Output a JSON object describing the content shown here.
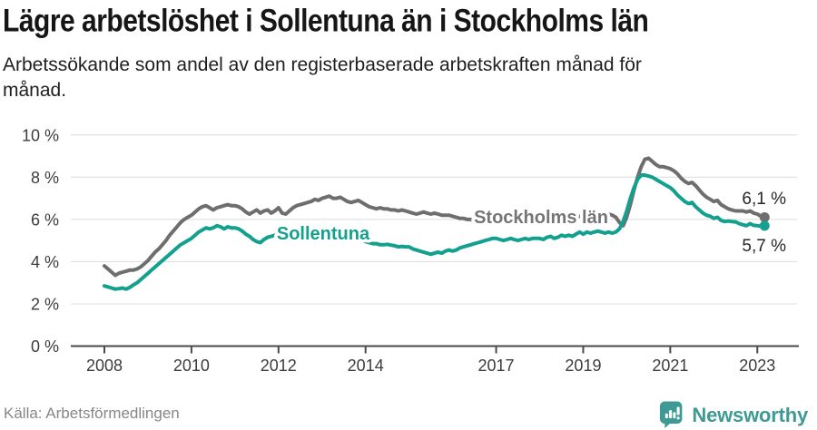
{
  "header": {
    "title": "Lägre arbetslöshet i Sollentuna än i Stockholms län",
    "subtitle": "Arbetssökande som andel av den registerbaserade arbetskraften månad för\nmånad."
  },
  "footer": {
    "source": "Källa: Arbetsförmedlingen",
    "brand_name": "Newsworthy",
    "brand_color": "#3d9a94"
  },
  "chart_data": {
    "type": "line",
    "title": "Lägre arbetslöshet i Sollentuna än i Stockholms län",
    "subtitle": "Arbetssökande som andel av den registerbaserade arbetskraften månad för månad.",
    "source": "Källa: Arbetsförmedlingen",
    "frequency": "monthly",
    "x_start": "2008-01",
    "x_end": "2023-03",
    "x_ticks": [
      2008,
      2010,
      2012,
      2014,
      2017,
      2019,
      2021,
      2023
    ],
    "y_ticks": [
      0,
      2,
      4,
      6,
      8,
      10
    ],
    "y_tick_suffix": " %",
    "ylim": [
      0,
      10
    ],
    "grid": true,
    "axis_text_color": "#3c3c3c",
    "grid_color": "#dcdcdd",
    "axis_color": "#4a4a4a",
    "end_label_color": "#262626",
    "series": [
      {
        "name": "Stockholms län",
        "color": "#6e6e6e",
        "label_color": "#757575",
        "end_label": "6,1 %",
        "end_value": 6.1,
        "values": [
          3.8,
          3.65,
          3.5,
          3.35,
          3.45,
          3.5,
          3.55,
          3.6,
          3.6,
          3.65,
          3.75,
          3.9,
          4.05,
          4.25,
          4.45,
          4.6,
          4.8,
          5.0,
          5.25,
          5.45,
          5.65,
          5.85,
          6.0,
          6.1,
          6.2,
          6.35,
          6.5,
          6.6,
          6.65,
          6.55,
          6.45,
          6.55,
          6.6,
          6.65,
          6.7,
          6.65,
          6.65,
          6.6,
          6.5,
          6.35,
          6.25,
          6.35,
          6.45,
          6.3,
          6.4,
          6.45,
          6.3,
          6.4,
          6.55,
          6.3,
          6.25,
          6.4,
          6.55,
          6.65,
          6.7,
          6.75,
          6.8,
          6.85,
          6.95,
          6.9,
          7.0,
          7.05,
          7.1,
          7.0,
          7.0,
          7.05,
          6.95,
          6.85,
          6.8,
          6.85,
          6.9,
          6.8,
          6.7,
          6.6,
          6.55,
          6.5,
          6.55,
          6.5,
          6.5,
          6.45,
          6.45,
          6.4,
          6.45,
          6.4,
          6.35,
          6.3,
          6.25,
          6.3,
          6.35,
          6.3,
          6.25,
          6.3,
          6.25,
          6.2,
          6.2,
          6.2,
          6.15,
          6.1,
          6.05,
          6.05,
          6.0,
          6.0,
          5.95,
          5.95,
          5.9,
          5.9,
          5.95,
          5.95,
          5.95,
          5.9,
          5.9,
          5.9,
          5.95,
          5.95,
          6.0,
          6.0,
          6.0,
          6.0,
          6.05,
          6.05,
          6.05,
          6.0,
          6.0,
          5.95,
          6.0,
          6.0,
          6.05,
          6.05,
          6.1,
          6.1,
          6.1,
          6.15,
          6.15,
          6.1,
          6.15,
          6.15,
          6.2,
          6.2,
          6.2,
          6.25,
          6.2,
          6.1,
          5.85,
          5.7,
          6.1,
          6.7,
          7.4,
          8.0,
          8.5,
          8.85,
          8.9,
          8.75,
          8.6,
          8.5,
          8.5,
          8.45,
          8.4,
          8.3,
          8.15,
          7.95,
          7.8,
          7.7,
          7.75,
          7.6,
          7.4,
          7.2,
          7.05,
          6.95,
          6.85,
          6.9,
          6.7,
          6.6,
          6.5,
          6.45,
          6.4,
          6.4,
          6.4,
          6.35,
          6.4,
          6.3,
          6.25,
          6.15,
          6.1
        ]
      },
      {
        "name": "Sollentuna",
        "color": "#14a08f",
        "label_color": "#14a08f",
        "end_label": "5,7 %",
        "end_value": 5.7,
        "values": [
          2.85,
          2.8,
          2.75,
          2.7,
          2.72,
          2.75,
          2.7,
          2.78,
          2.9,
          3.0,
          3.15,
          3.3,
          3.45,
          3.6,
          3.75,
          3.9,
          4.05,
          4.2,
          4.35,
          4.5,
          4.65,
          4.8,
          4.9,
          5.0,
          5.1,
          5.25,
          5.4,
          5.5,
          5.6,
          5.55,
          5.6,
          5.7,
          5.65,
          5.55,
          5.65,
          5.6,
          5.6,
          5.55,
          5.45,
          5.3,
          5.2,
          5.05,
          4.95,
          4.9,
          5.05,
          5.15,
          5.2,
          5.25,
          5.3,
          5.35,
          5.3,
          5.4,
          5.45,
          5.5,
          5.45,
          5.4,
          5.5,
          5.45,
          5.4,
          5.35,
          5.4,
          5.35,
          5.3,
          5.25,
          5.3,
          5.25,
          5.2,
          5.15,
          5.1,
          5.1,
          5.05,
          5.0,
          4.95,
          4.9,
          4.85,
          4.85,
          4.8,
          4.8,
          4.82,
          4.78,
          4.75,
          4.7,
          4.72,
          4.7,
          4.7,
          4.6,
          4.55,
          4.5,
          4.45,
          4.4,
          4.35,
          4.4,
          4.45,
          4.4,
          4.5,
          4.55,
          4.5,
          4.55,
          4.65,
          4.7,
          4.75,
          4.8,
          4.85,
          4.9,
          4.95,
          5.0,
          5.05,
          5.1,
          5.1,
          5.05,
          5.0,
          5.05,
          5.1,
          5.05,
          5.0,
          5.05,
          5.1,
          5.05,
          5.1,
          5.1,
          5.1,
          5.05,
          5.15,
          5.2,
          5.1,
          5.15,
          5.25,
          5.2,
          5.25,
          5.2,
          5.3,
          5.4,
          5.3,
          5.4,
          5.35,
          5.4,
          5.45,
          5.4,
          5.35,
          5.4,
          5.35,
          5.4,
          5.55,
          5.9,
          6.4,
          7.0,
          7.5,
          7.9,
          8.1,
          8.1,
          8.05,
          8.0,
          7.9,
          7.8,
          7.7,
          7.6,
          7.5,
          7.35,
          7.15,
          7.0,
          6.85,
          6.75,
          6.8,
          6.6,
          6.45,
          6.3,
          6.2,
          6.15,
          6.05,
          6.1,
          5.95,
          5.9,
          5.92,
          5.9,
          5.88,
          5.8,
          5.75,
          5.7,
          5.8,
          5.72,
          5.7,
          5.68,
          5.7
        ]
      }
    ]
  }
}
